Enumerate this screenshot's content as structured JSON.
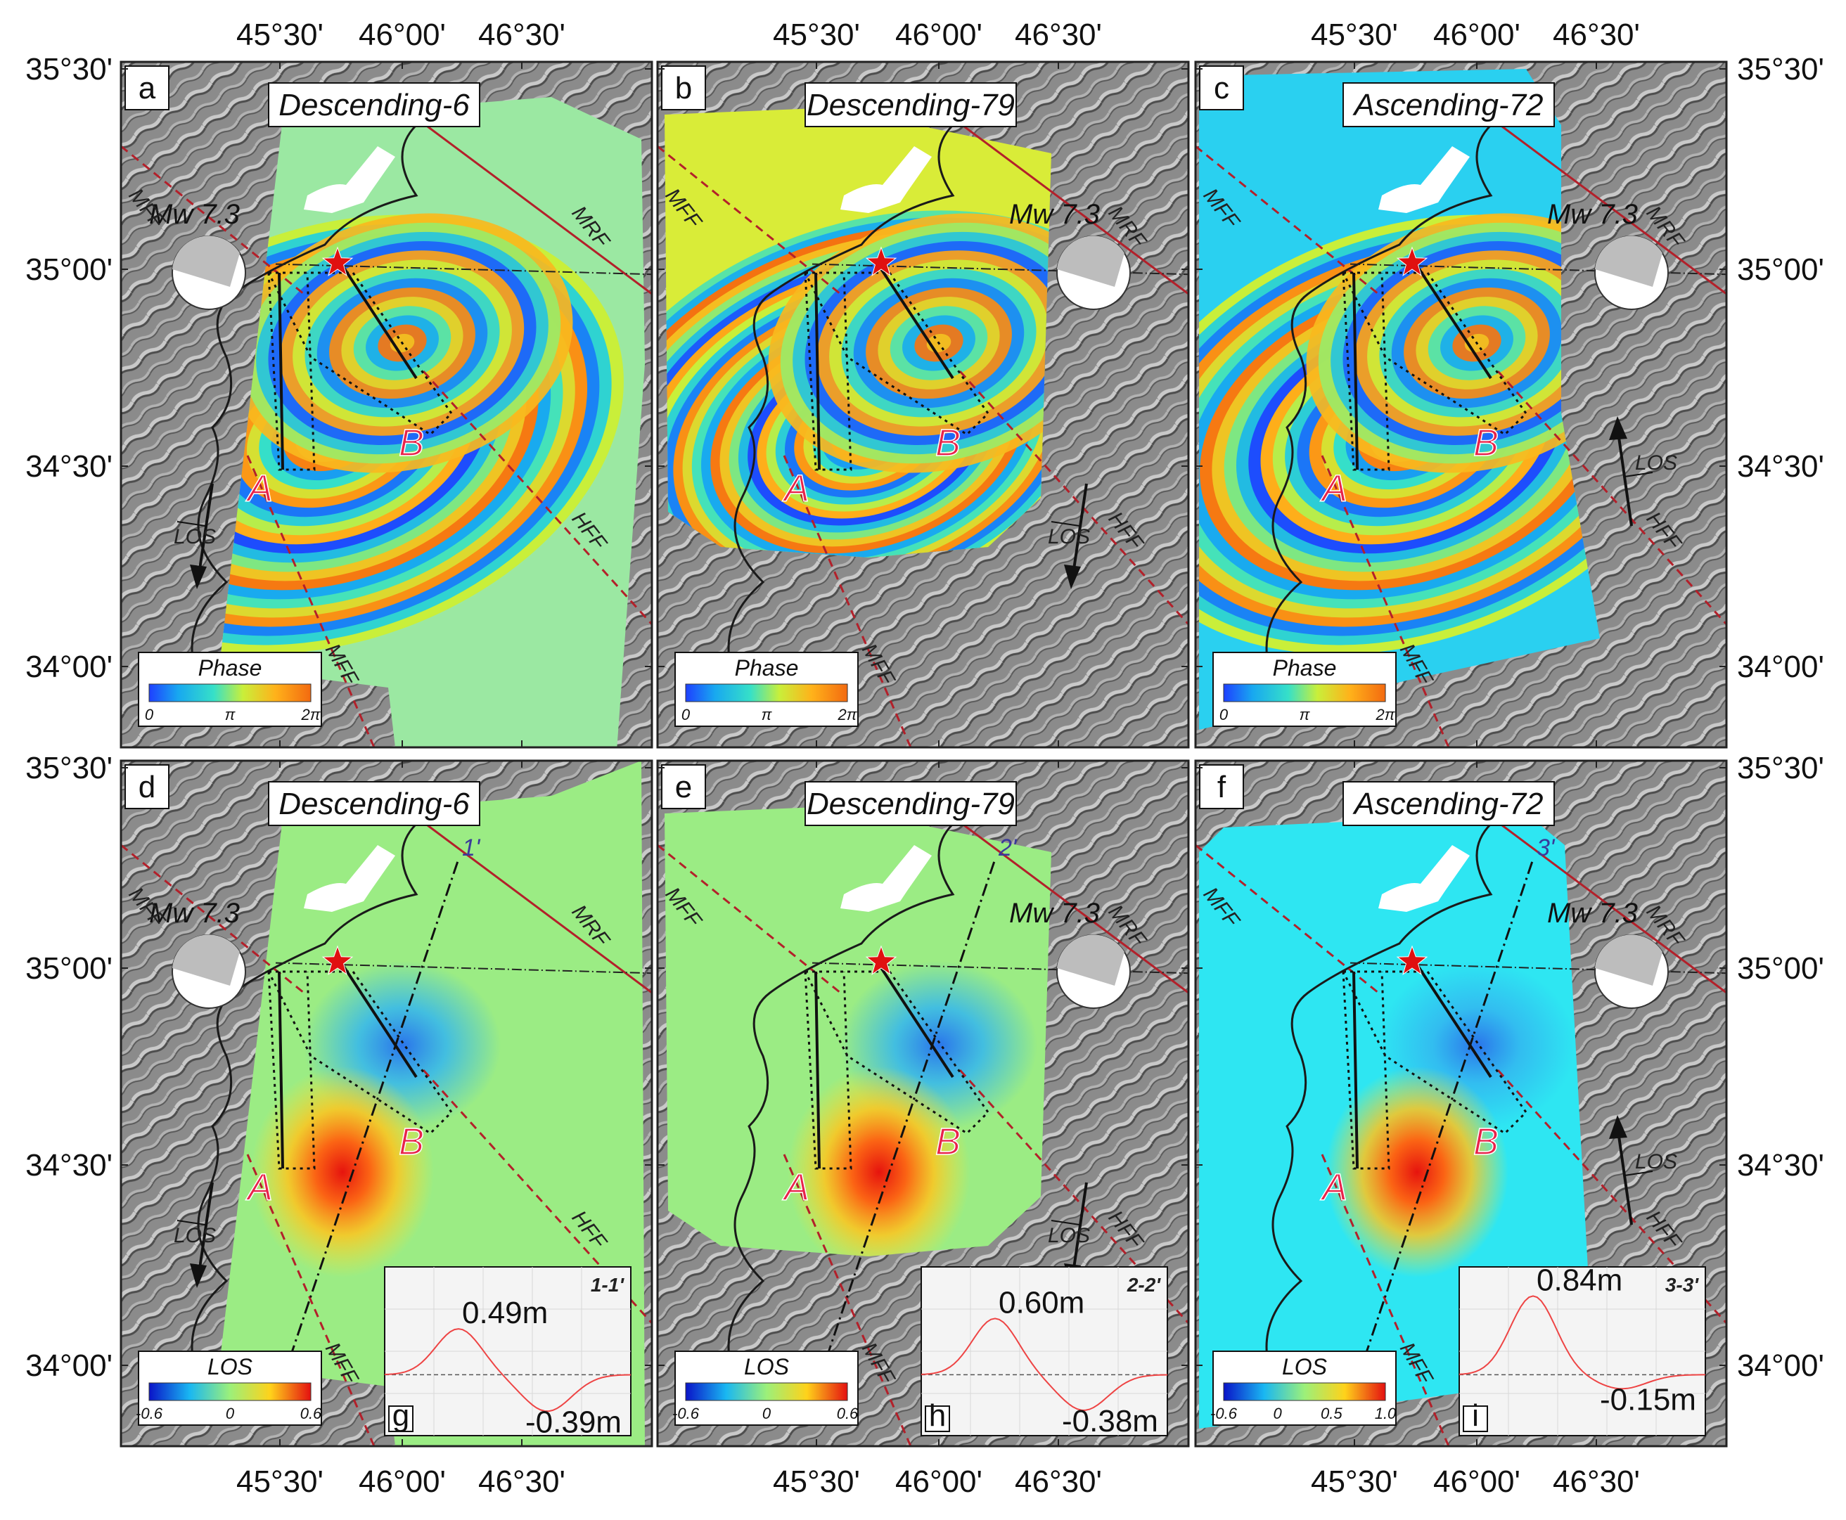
{
  "axes": {
    "lon_ticks": [
      "45°30'",
      "46°00'",
      "46°30'"
    ],
    "lat_ticks": [
      "35°30'",
      "35°00'",
      "34°30'",
      "34°00'"
    ]
  },
  "panels": [
    {
      "letter": "a",
      "title": "Descending-6",
      "kind": "phase",
      "fault_west": "MFF",
      "fault_north": "MRF",
      "fault_east": "HFF",
      "fault_south": "MFF"
    },
    {
      "letter": "b",
      "title": "Descending-79",
      "kind": "phase",
      "fault_west": "MFF",
      "fault_north": "MRF",
      "fault_east": "HFF",
      "fault_south": "MFF"
    },
    {
      "letter": "c",
      "title": "Ascending-72",
      "kind": "phase",
      "fault_west": "MFF",
      "fault_north": "MRF",
      "fault_east": "HFF",
      "fault_south": "MFF"
    },
    {
      "letter": "d",
      "title": "Descending-6",
      "kind": "los",
      "fault_west": "MFF",
      "fault_north": "MRF",
      "fault_east": "HFF",
      "fault_south": "MFF"
    },
    {
      "letter": "e",
      "title": "Descending-79",
      "kind": "los",
      "fault_west": "MFF",
      "fault_north": "MRF",
      "fault_east": "HFF",
      "fault_south": "MFF"
    },
    {
      "letter": "f",
      "title": "Ascending-72",
      "kind": "los",
      "fault_west": "MFF",
      "fault_north": "MRF",
      "fault_east": "HFF",
      "fault_south": "MFF"
    }
  ],
  "event": {
    "magnitude": "Mw 7.3",
    "point_a": "A",
    "point_b": "B"
  },
  "los_label": "LOS",
  "phase_colorbar": {
    "title": "Phase",
    "ticks": [
      "0",
      "π",
      "2π"
    ]
  },
  "los_colorbars": [
    {
      "title": "LOS",
      "ticks": [
        "-0.6",
        "0",
        "0.6"
      ]
    },
    {
      "title": "LOS",
      "ticks": [
        "-0.6",
        "0",
        "0.6"
      ]
    },
    {
      "title": "LOS",
      "ticks": [
        "-0.6",
        "0",
        "0.5",
        "1.0"
      ]
    }
  ],
  "profiles": [
    {
      "letter": "g",
      "name": "1-1'",
      "start": "1",
      "end": "1'",
      "max_label": "0.49m",
      "min_label": "-0.39m",
      "max": 0.49,
      "min": -0.39
    },
    {
      "letter": "h",
      "name": "2-2'",
      "start": "2",
      "end": "2'",
      "max_label": "0.60m",
      "min_label": "-0.38m",
      "max": 0.6,
      "min": -0.38
    },
    {
      "letter": "i",
      "name": "3-3'",
      "start": "3",
      "end": "3'",
      "max_label": "0.84m",
      "min_label": "-0.15m",
      "max": 0.84,
      "min": -0.15
    }
  ],
  "colors": {
    "fault_red": "#b3202a",
    "star": "#e01010",
    "label_red": "#e8234a",
    "profile_blue": "#3a3a9a"
  }
}
